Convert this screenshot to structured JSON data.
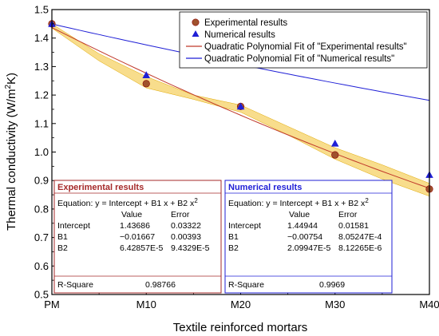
{
  "chart_data": {
    "type": "scatter",
    "title": "",
    "xlabel": "Textile reinforced mortars",
    "ylabel_main": "Thermal conductivity (W/m",
    "ylabel_sup": "2",
    "ylabel_tail": "K)",
    "categories": [
      "PM",
      "M10",
      "M20",
      "M30",
      "M40"
    ],
    "ylim": [
      0.5,
      1.5
    ],
    "yticks": [
      "0.5",
      "0.6",
      "0.7",
      "0.8",
      "0.9",
      "1.0",
      "1.1",
      "1.2",
      "1.3",
      "1.4",
      "1.5"
    ],
    "grid": false,
    "legend_position": "top-right",
    "series": [
      {
        "name": "Experimental results",
        "marker": "circle",
        "color": "#c0392b",
        "values": [
          1.45,
          1.24,
          1.16,
          0.99,
          0.87
        ]
      },
      {
        "name": "Numerical results",
        "marker": "triangle",
        "color": "#1f1fd6",
        "values": [
          1.45,
          1.27,
          1.16,
          1.03,
          0.92
        ]
      }
    ],
    "fits": [
      {
        "name": "Quadratic Polynomial Fit of \"Experimental results\"",
        "color": "#c0392b",
        "intercept": 1.43686,
        "b1": -0.01667,
        "b2": 6.42857e-05
      },
      {
        "name": "Quadratic Polynomial Fit of \"Numerical results\"",
        "color": "#1f1fd6",
        "intercept": 1.44944,
        "b1": -0.00754,
        "b2": 2.09947e-05
      }
    ],
    "confidence_band": {
      "color": "#f2c12e",
      "x": [
        0,
        5,
        10,
        15,
        20,
        25,
        30,
        35,
        40
      ],
      "lower": [
        1.435,
        1.32,
        1.225,
        1.185,
        1.14,
        1.06,
        0.975,
        0.905,
        0.845
      ],
      "upper": [
        1.45,
        1.345,
        1.265,
        1.2,
        1.165,
        1.09,
        1.015,
        0.955,
        0.89
      ]
    },
    "stats": [
      {
        "title": "Experimental results",
        "equation_main": "Equation: y = Intercept + B1 x + B2 x",
        "equation_sup": "2",
        "col_value": "Value",
        "col_error": "Error",
        "rows": [
          {
            "name": "Intercept",
            "value": "1.43686",
            "error": "0.03322"
          },
          {
            "name": "B1",
            "value": "−0.01667",
            "error": "0.00393"
          },
          {
            "name": "B2",
            "value": "6.42857E-5",
            "error": "9.4329E-5"
          }
        ],
        "r_label": "R-Square",
        "r_value": "0.98766",
        "color": "#a52a2a"
      },
      {
        "title": "Numerical results",
        "equation_main": "Equation: y = Intercept + B1 x + B2 x",
        "equation_sup": "2",
        "col_value": "Value",
        "col_error": "Error",
        "rows": [
          {
            "name": "Intercept",
            "value": "1.44944",
            "error": "0.01581"
          },
          {
            "name": "B1",
            "value": "−0.00754",
            "error": "8.05247E-4"
          },
          {
            "name": "B2",
            "value": "2.09947E-5",
            "error": "8.12265E-6"
          }
        ],
        "r_label": "R-Square",
        "r_value": "0.9969",
        "color": "#1f1fd6"
      }
    ]
  }
}
